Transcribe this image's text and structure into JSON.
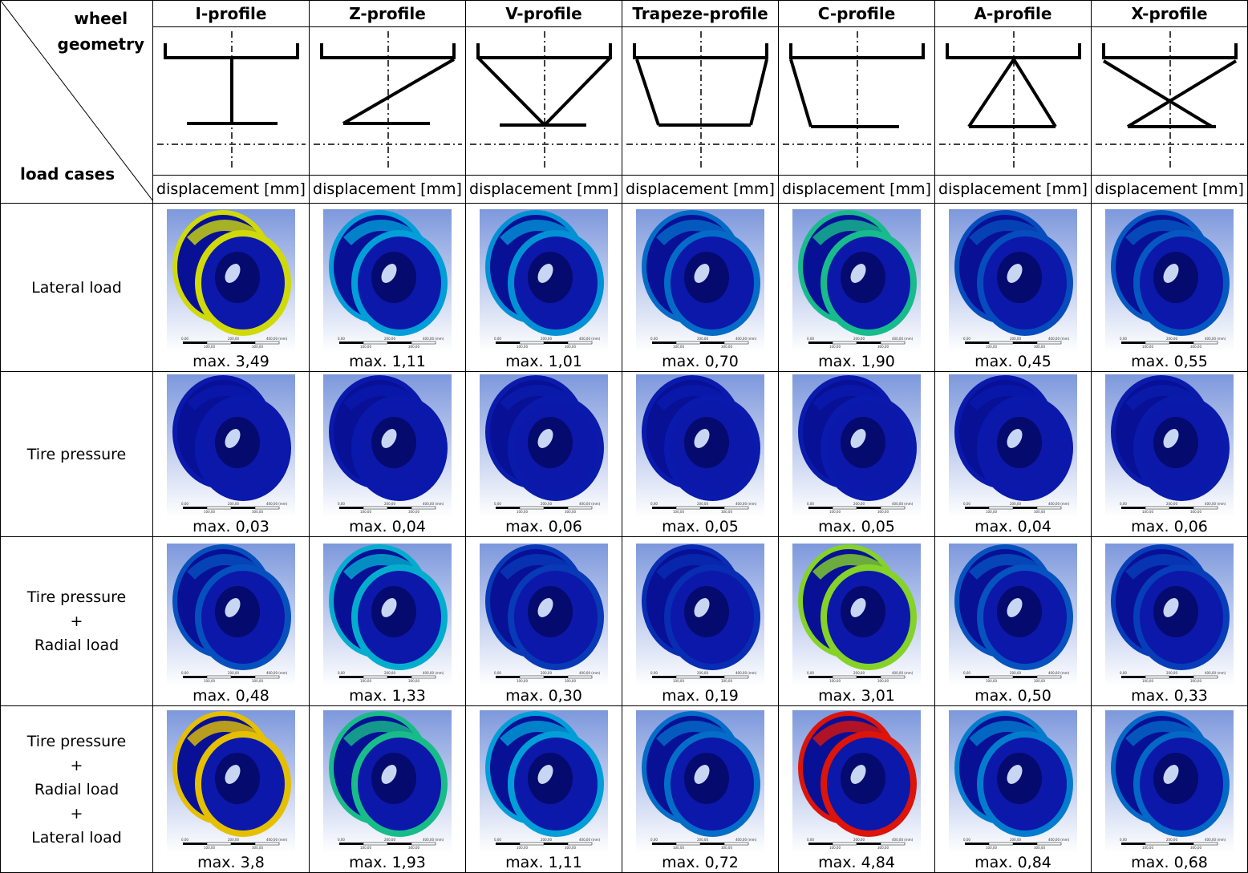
{
  "corner": {
    "top_line1": "wheel",
    "top_line2": "geometry",
    "bottom": "load cases"
  },
  "profiles": [
    "I-profile",
    "Z-profile",
    "V-profile",
    "Trapeze-profile",
    "C-profile",
    "A-profile",
    "X-profile"
  ],
  "unit_label": "displacement [mm]",
  "scale_bar": {
    "t0": "0,00",
    "t1": "200,00",
    "t2": "400,00 (mm)",
    "b1": "100,00",
    "b2": "300,00"
  },
  "rows": [
    {
      "label": [
        "Lateral load"
      ],
      "values": [
        "max. 3,49",
        "max. 1,11",
        "max. 1,01",
        "max. 0,70",
        "max. 1,90",
        "max. 0,45",
        "max. 0,55"
      ],
      "num": [
        3.49,
        1.11,
        1.01,
        0.7,
        1.9,
        0.45,
        0.55
      ]
    },
    {
      "label": [
        "Tire pressure"
      ],
      "values": [
        "max. 0,03",
        "max. 0,04",
        "max. 0,06",
        "max. 0,05",
        "max. 0,05",
        "max. 0,04",
        "max. 0,06"
      ],
      "num": [
        0.03,
        0.04,
        0.06,
        0.05,
        0.05,
        0.04,
        0.06
      ]
    },
    {
      "label": [
        "Tire pressure",
        "+",
        "Radial load"
      ],
      "values": [
        "max. 0,48",
        "max. 1,33",
        "max. 0,30",
        "max. 0,19",
        "max. 3,01",
        "max. 0,50",
        "max. 0,33"
      ],
      "num": [
        0.48,
        1.33,
        0.3,
        0.19,
        3.01,
        0.5,
        0.33
      ]
    },
    {
      "label": [
        "Tire pressure",
        "+",
        "Radial load",
        "+",
        "Lateral load"
      ],
      "values": [
        "max. 3,8",
        "max. 1,93",
        "max. 1,11",
        "max. 0,72",
        "max. 4,84",
        "max. 0,84",
        "max. 0,68"
      ],
      "num": [
        3.8,
        1.93,
        1.11,
        0.72,
        4.84,
        0.84,
        0.68
      ]
    }
  ]
}
